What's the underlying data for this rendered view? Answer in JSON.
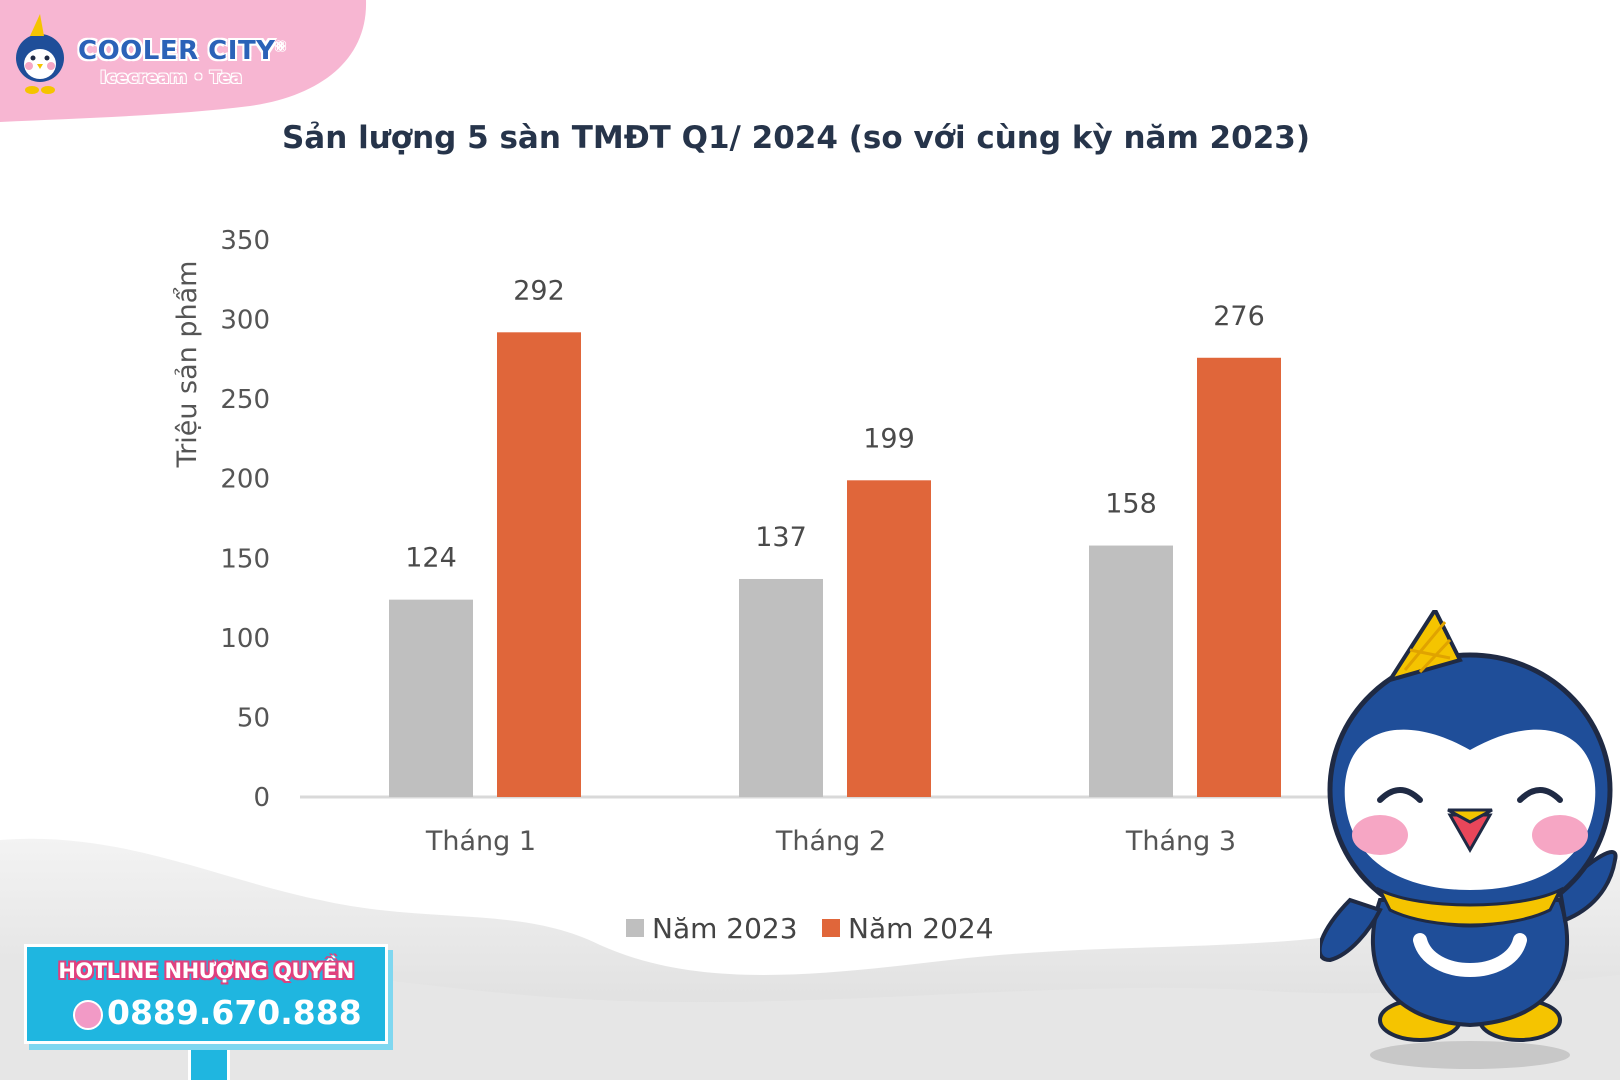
{
  "brand": {
    "name": "COOLER CITY",
    "registered": "®",
    "tagline": "Icecream • Tea"
  },
  "chart_data": {
    "type": "bar",
    "title": "Sản lượng 5 sàn TMĐT Q1/ 2024 (so với cùng kỳ năm 2023)",
    "xlabel": "",
    "ylabel": "Triệu sản phẩm",
    "categories": [
      "Tháng 1",
      "Tháng 2",
      "Tháng 3"
    ],
    "series": [
      {
        "name": "Năm 2023",
        "values": [
          124,
          137,
          158
        ],
        "color": "#bfbfbf"
      },
      {
        "name": "Năm 2024",
        "values": [
          292,
          199,
          276
        ],
        "color": "#e0663a"
      }
    ],
    "ylim": [
      0,
      350
    ],
    "yticks": [
      0,
      50,
      100,
      150,
      200,
      250,
      300,
      350
    ],
    "grid": false,
    "data_labels": true,
    "legend_position": "bottom"
  },
  "hotline": {
    "label": "HOTLINE NHƯỢNG QUYỀN",
    "phone": "0889.670.888"
  },
  "colors": {
    "brand_pink": "#f7b6d2",
    "brand_blue": "#1f4e99",
    "hotline_blue": "#1fb6e0"
  },
  "icons": [
    "penguin-mascot-logo",
    "penguin-mascot",
    "phone-icon"
  ]
}
